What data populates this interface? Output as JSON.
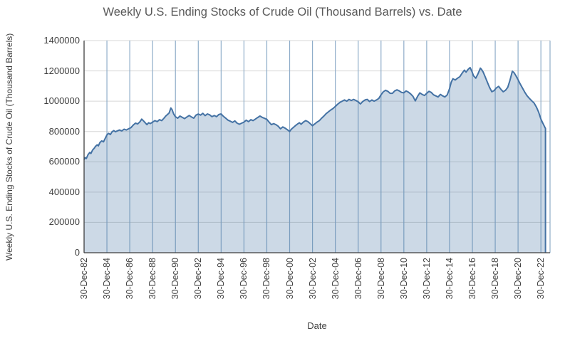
{
  "chart_data": {
    "type": "area",
    "title": "Weekly U.S. Ending Stocks of Crude Oil  (Thousand Barrels) vs. Date",
    "xlabel": "Date",
    "ylabel": "Weekly U.S. Ending Stocks of Crude Oil  (Thousand Barrels)",
    "legend": "none",
    "grid": {
      "horizontal": true,
      "vertical": true
    },
    "ylim": [
      0,
      1400000
    ],
    "y_ticks": [
      0,
      200000,
      400000,
      600000,
      800000,
      1000000,
      1200000,
      1400000
    ],
    "x_tick_labels": [
      "30-Dec-82",
      "30-Dec-84",
      "30-Dec-86",
      "30-Dec-88",
      "30-Dec-90",
      "30-Dec-92",
      "30-Dec-94",
      "30-Dec-96",
      "30-Dec-98",
      "30-Dec-00",
      "30-Dec-02",
      "30-Dec-04",
      "30-Dec-06",
      "30-Dec-08",
      "30-Dec-10",
      "30-Dec-12",
      "30-Dec-14",
      "30-Dec-16",
      "30-Dec-18",
      "30-Dec-20",
      "30-Dec-22"
    ],
    "x_tick_positions": [
      1983,
      1985,
      1987,
      1989,
      1991,
      1993,
      1995,
      1997,
      1999,
      2001,
      2003,
      2005,
      2007,
      2009,
      2011,
      2013,
      2015,
      2017,
      2019,
      2021,
      2023
    ],
    "x_range_years": [
      1983.0,
      2023.8
    ],
    "colors": {
      "line": "#4472a4",
      "fill": "rgba(68,114,164,0.27)",
      "vertical_grid": "#8fadc9",
      "horizontal_grid": "#d7d7d7",
      "axis": "#3f3f3f",
      "title_text": "#595959",
      "label_text": "#3f3f3f"
    },
    "series": [
      {
        "name": "Weekly U.S. Ending Stocks of Crude Oil (Thousand Barrels)",
        "points": [
          [
            1983.0,
            615000
          ],
          [
            1983.1,
            628000
          ],
          [
            1983.2,
            622000
          ],
          [
            1983.35,
            648000
          ],
          [
            1983.5,
            662000
          ],
          [
            1983.6,
            655000
          ],
          [
            1983.75,
            678000
          ],
          [
            1983.9,
            690000
          ],
          [
            1984.0,
            702000
          ],
          [
            1984.15,
            712000
          ],
          [
            1984.25,
            705000
          ],
          [
            1984.4,
            728000
          ],
          [
            1984.55,
            738000
          ],
          [
            1984.7,
            732000
          ],
          [
            1984.85,
            755000
          ],
          [
            1985.0,
            778000
          ],
          [
            1985.15,
            788000
          ],
          [
            1985.3,
            780000
          ],
          [
            1985.45,
            798000
          ],
          [
            1985.6,
            806000
          ],
          [
            1985.75,
            798000
          ],
          [
            1985.9,
            804000
          ],
          [
            1986.1,
            810000
          ],
          [
            1986.3,
            804000
          ],
          [
            1986.5,
            815000
          ],
          [
            1986.7,
            810000
          ],
          [
            1986.9,
            818000
          ],
          [
            1987.1,
            825000
          ],
          [
            1987.3,
            842000
          ],
          [
            1987.5,
            855000
          ],
          [
            1987.7,
            850000
          ],
          [
            1987.9,
            865000
          ],
          [
            1988.05,
            882000
          ],
          [
            1988.2,
            870000
          ],
          [
            1988.35,
            858000
          ],
          [
            1988.5,
            845000
          ],
          [
            1988.65,
            858000
          ],
          [
            1988.8,
            852000
          ],
          [
            1989.0,
            862000
          ],
          [
            1989.2,
            872000
          ],
          [
            1989.4,
            865000
          ],
          [
            1989.6,
            878000
          ],
          [
            1989.8,
            872000
          ],
          [
            1990.0,
            888000
          ],
          [
            1990.15,
            902000
          ],
          [
            1990.3,
            912000
          ],
          [
            1990.45,
            922000
          ],
          [
            1990.6,
            955000
          ],
          [
            1990.7,
            945000
          ],
          [
            1990.85,
            915000
          ],
          [
            1991.0,
            898000
          ],
          [
            1991.2,
            888000
          ],
          [
            1991.4,
            902000
          ],
          [
            1991.6,
            893000
          ],
          [
            1991.8,
            885000
          ],
          [
            1992.0,
            896000
          ],
          [
            1992.2,
            906000
          ],
          [
            1992.4,
            896000
          ],
          [
            1992.6,
            888000
          ],
          [
            1992.8,
            908000
          ],
          [
            1993.0,
            915000
          ],
          [
            1993.2,
            908000
          ],
          [
            1993.4,
            920000
          ],
          [
            1993.6,
            905000
          ],
          [
            1993.8,
            916000
          ],
          [
            1994.0,
            910000
          ],
          [
            1994.2,
            898000
          ],
          [
            1994.4,
            906000
          ],
          [
            1994.6,
            898000
          ],
          [
            1994.8,
            912000
          ],
          [
            1995.0,
            916000
          ],
          [
            1995.2,
            900000
          ],
          [
            1995.4,
            888000
          ],
          [
            1995.6,
            875000
          ],
          [
            1995.8,
            868000
          ],
          [
            1996.0,
            860000
          ],
          [
            1996.2,
            870000
          ],
          [
            1996.4,
            855000
          ],
          [
            1996.6,
            848000
          ],
          [
            1996.8,
            855000
          ],
          [
            1997.0,
            862000
          ],
          [
            1997.2,
            875000
          ],
          [
            1997.4,
            865000
          ],
          [
            1997.6,
            878000
          ],
          [
            1997.8,
            872000
          ],
          [
            1998.0,
            882000
          ],
          [
            1998.2,
            892000
          ],
          [
            1998.4,
            902000
          ],
          [
            1998.6,
            893000
          ],
          [
            1998.8,
            887000
          ],
          [
            1999.0,
            880000
          ],
          [
            1999.2,
            862000
          ],
          [
            1999.4,
            845000
          ],
          [
            1999.6,
            852000
          ],
          [
            1999.8,
            845000
          ],
          [
            2000.0,
            835000
          ],
          [
            2000.2,
            818000
          ],
          [
            2000.4,
            830000
          ],
          [
            2000.6,
            822000
          ],
          [
            2000.8,
            812000
          ],
          [
            2001.0,
            800000
          ],
          [
            2001.15,
            815000
          ],
          [
            2001.3,
            825000
          ],
          [
            2001.5,
            838000
          ],
          [
            2001.7,
            850000
          ],
          [
            2001.85,
            858000
          ],
          [
            2002.0,
            848000
          ],
          [
            2002.2,
            862000
          ],
          [
            2002.4,
            872000
          ],
          [
            2002.6,
            865000
          ],
          [
            2002.8,
            852000
          ],
          [
            2003.0,
            838000
          ],
          [
            2003.2,
            850000
          ],
          [
            2003.4,
            862000
          ],
          [
            2003.6,
            872000
          ],
          [
            2003.8,
            888000
          ],
          [
            2004.0,
            902000
          ],
          [
            2004.2,
            918000
          ],
          [
            2004.4,
            930000
          ],
          [
            2004.6,
            942000
          ],
          [
            2004.8,
            952000
          ],
          [
            2005.0,
            965000
          ],
          [
            2005.2,
            980000
          ],
          [
            2005.4,
            992000
          ],
          [
            2005.6,
            1000000
          ],
          [
            2005.8,
            1008000
          ],
          [
            2006.0,
            1000000
          ],
          [
            2006.2,
            1012000
          ],
          [
            2006.4,
            1005000
          ],
          [
            2006.6,
            1012000
          ],
          [
            2006.8,
            1005000
          ],
          [
            2007.0,
            996000
          ],
          [
            2007.2,
            982000
          ],
          [
            2007.4,
            998000
          ],
          [
            2007.6,
            1008000
          ],
          [
            2007.8,
            1012000
          ],
          [
            2008.0,
            998000
          ],
          [
            2008.2,
            1008000
          ],
          [
            2008.4,
            1000000
          ],
          [
            2008.6,
            1008000
          ],
          [
            2008.8,
            1018000
          ],
          [
            2009.0,
            1042000
          ],
          [
            2009.2,
            1062000
          ],
          [
            2009.4,
            1072000
          ],
          [
            2009.6,
            1065000
          ],
          [
            2009.8,
            1052000
          ],
          [
            2010.0,
            1052000
          ],
          [
            2010.2,
            1068000
          ],
          [
            2010.4,
            1075000
          ],
          [
            2010.6,
            1068000
          ],
          [
            2010.8,
            1058000
          ],
          [
            2011.0,
            1055000
          ],
          [
            2011.2,
            1068000
          ],
          [
            2011.4,
            1060000
          ],
          [
            2011.6,
            1048000
          ],
          [
            2011.8,
            1032000
          ],
          [
            2012.0,
            1002000
          ],
          [
            2012.2,
            1032000
          ],
          [
            2012.4,
            1055000
          ],
          [
            2012.6,
            1045000
          ],
          [
            2012.8,
            1038000
          ],
          [
            2013.0,
            1052000
          ],
          [
            2013.2,
            1065000
          ],
          [
            2013.4,
            1058000
          ],
          [
            2013.6,
            1042000
          ],
          [
            2013.8,
            1035000
          ],
          [
            2014.0,
            1028000
          ],
          [
            2014.2,
            1045000
          ],
          [
            2014.4,
            1035000
          ],
          [
            2014.6,
            1028000
          ],
          [
            2014.8,
            1042000
          ],
          [
            2015.0,
            1082000
          ],
          [
            2015.15,
            1125000
          ],
          [
            2015.3,
            1148000
          ],
          [
            2015.5,
            1140000
          ],
          [
            2015.7,
            1152000
          ],
          [
            2015.9,
            1162000
          ],
          [
            2016.1,
            1185000
          ],
          [
            2016.3,
            1205000
          ],
          [
            2016.45,
            1192000
          ],
          [
            2016.6,
            1208000
          ],
          [
            2016.8,
            1222000
          ],
          [
            2016.95,
            1198000
          ],
          [
            2017.1,
            1168000
          ],
          [
            2017.3,
            1152000
          ],
          [
            2017.5,
            1182000
          ],
          [
            2017.7,
            1218000
          ],
          [
            2017.8,
            1210000
          ],
          [
            2017.95,
            1192000
          ],
          [
            2018.1,
            1165000
          ],
          [
            2018.3,
            1128000
          ],
          [
            2018.5,
            1092000
          ],
          [
            2018.7,
            1062000
          ],
          [
            2018.9,
            1070000
          ],
          [
            2019.1,
            1088000
          ],
          [
            2019.3,
            1098000
          ],
          [
            2019.5,
            1078000
          ],
          [
            2019.7,
            1062000
          ],
          [
            2019.9,
            1072000
          ],
          [
            2020.1,
            1092000
          ],
          [
            2020.3,
            1140000
          ],
          [
            2020.5,
            1198000
          ],
          [
            2020.65,
            1188000
          ],
          [
            2020.8,
            1170000
          ],
          [
            2021.0,
            1142000
          ],
          [
            2021.2,
            1112000
          ],
          [
            2021.4,
            1085000
          ],
          [
            2021.6,
            1058000
          ],
          [
            2021.8,
            1035000
          ],
          [
            2022.0,
            1018000
          ],
          [
            2022.2,
            1002000
          ],
          [
            2022.4,
            988000
          ],
          [
            2022.6,
            962000
          ],
          [
            2022.8,
            928000
          ],
          [
            2023.0,
            882000
          ],
          [
            2023.15,
            858000
          ],
          [
            2023.3,
            835000
          ],
          [
            2023.4,
            820000
          ]
        ]
      }
    ]
  }
}
